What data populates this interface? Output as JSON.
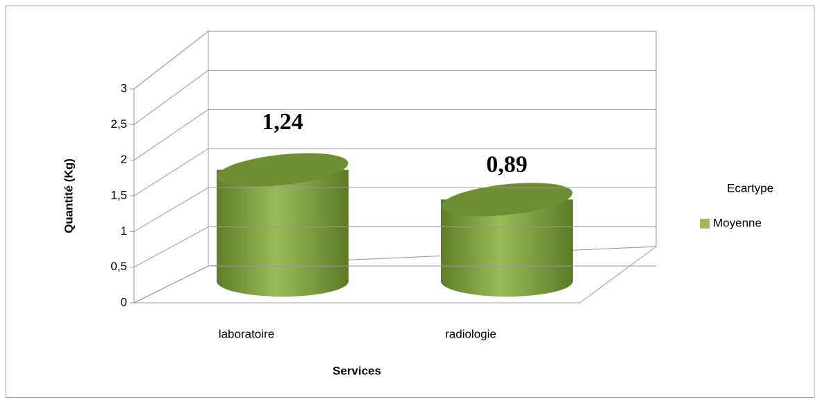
{
  "chart_data": {
    "type": "bar3d-cylinder-stacked",
    "y_label": "Quantité (Kg)",
    "x_label": "Services",
    "categories": [
      "laboratoire",
      "radiologie"
    ],
    "series": [
      {
        "name": "Moyenne",
        "color": "#9bbb59",
        "values": [
          1.5,
          1.1
        ]
      },
      {
        "name": "Ecartype",
        "values": [
          1.24,
          0.89
        ],
        "value_labels": [
          "1,24",
          "0,89"
        ]
      }
    ],
    "ylim": [
      0,
      3
    ],
    "yticks": [
      0,
      {
        "value": 0.5,
        "label": "0,5"
      },
      1,
      {
        "value": 1.5,
        "label": "1,5"
      },
      2,
      {
        "value": 2.5,
        "label": "2,5"
      },
      3
    ],
    "grid": true,
    "legend": "right"
  }
}
